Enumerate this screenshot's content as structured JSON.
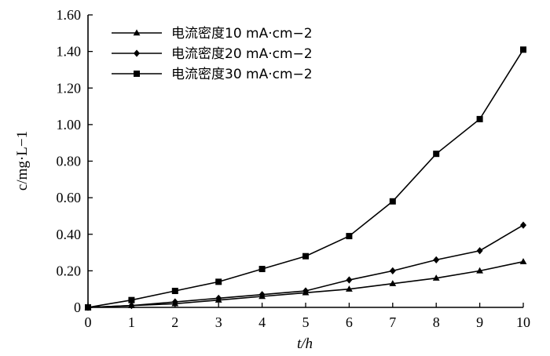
{
  "chart_data": {
    "type": "line",
    "xlabel": "t/h",
    "ylabel": "c/mg·L−1",
    "xlim": [
      0,
      10
    ],
    "ylim": [
      0,
      1.6
    ],
    "x_ticks": [
      "0",
      "1",
      "2",
      "3",
      "4",
      "5",
      "6",
      "7",
      "8",
      "9",
      "10"
    ],
    "y_ticks": [
      "0",
      "0.20",
      "0.40",
      "0.60",
      "0.80",
      "1.00",
      "1.20",
      "1.40",
      "1.60"
    ],
    "legend_position": "top-left",
    "grid": false,
    "x": [
      0,
      1,
      2,
      3,
      4,
      5,
      6,
      7,
      8,
      9,
      10
    ],
    "series": [
      {
        "name": "电流密度10 mA·cm−2",
        "marker": "triangle",
        "values": [
          0,
          0.01,
          0.02,
          0.04,
          0.06,
          0.08,
          0.1,
          0.13,
          0.16,
          0.2,
          0.25
        ]
      },
      {
        "name": "电流密度20 mA·cm−2",
        "marker": "diamond",
        "values": [
          0,
          0.01,
          0.03,
          0.05,
          0.07,
          0.09,
          0.15,
          0.2,
          0.26,
          0.31,
          0.45
        ]
      },
      {
        "name": "电流密度30 mA·cm−2",
        "marker": "square",
        "values": [
          0,
          0.04,
          0.09,
          0.14,
          0.21,
          0.28,
          0.39,
          0.58,
          0.84,
          1.03,
          1.41
        ]
      }
    ]
  }
}
